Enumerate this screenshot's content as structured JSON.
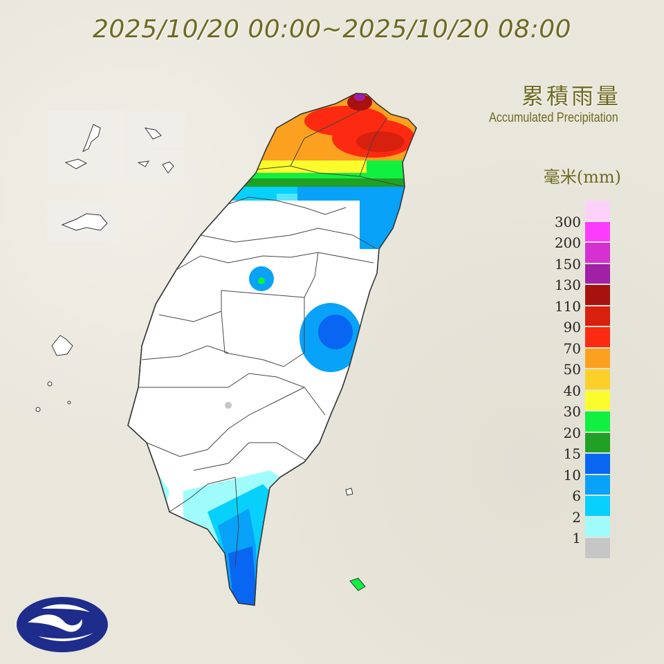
{
  "title": "2025/10/20 00:00~2025/10/20 08:00",
  "heading_zh": "累積雨量",
  "heading_en": "Accumulated Precipitation",
  "unit": "毫米(mm)",
  "legend": {
    "colors": [
      "#fcd2fa",
      "#fc3cfc",
      "#d430d2",
      "#a020a6",
      "#a8120e",
      "#d8200e",
      "#fc2a10",
      "#fca020",
      "#fcd028",
      "#fcfc2c",
      "#10f040",
      "#20a024",
      "#0866f2",
      "#08a2f8",
      "#08d0fc",
      "#a0fcfc",
      "#c6c6c6"
    ],
    "labels": [
      "300",
      "200",
      "150",
      "130",
      "110",
      "90",
      "70",
      "50",
      "40",
      "30",
      "20",
      "15",
      "10",
      "6",
      "2",
      "1"
    ]
  },
  "map": {
    "region": "Taiwan",
    "heaviest_rain_area": "north",
    "land_color": "#ffffff"
  },
  "logo": "central-weather-administration-logo"
}
